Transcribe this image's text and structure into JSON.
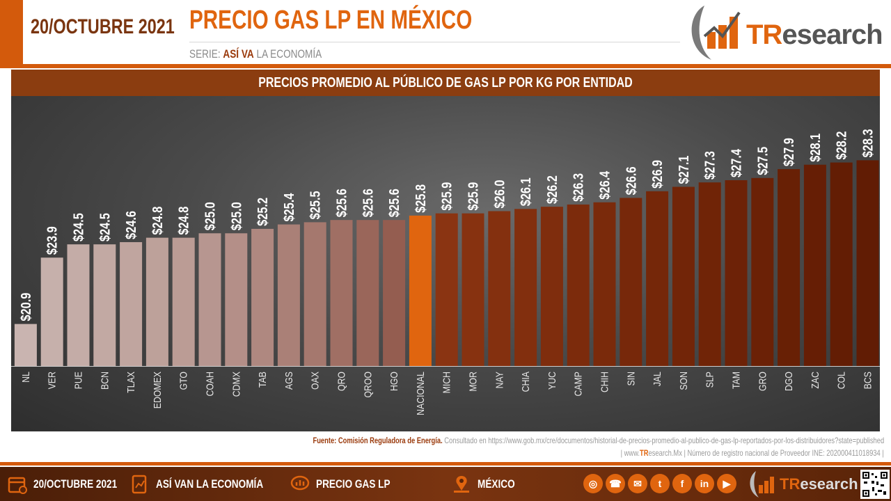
{
  "header": {
    "date_title": "20/OCTUBRE 2021",
    "main_title": "PRECIO GAS LP EN MÉXICO",
    "series_prefix": "SERIE:",
    "series_brand": "ASÍ VA",
    "series_suffix": "LA ECONOMÍA",
    "logo_tr": "TR",
    "logo_rest": "esearch"
  },
  "chart_data": {
    "type": "bar",
    "title": "PRECIOS PROMEDIO AL PÚBLICO DE GAS LP POR KG POR ENTIDAD",
    "categories": [
      "NL",
      "VER",
      "PUE",
      "BCN",
      "TLAX",
      "EDOMEX",
      "GTO",
      "COAH",
      "CDMX",
      "TAB",
      "AGS",
      "OAX",
      "QRO",
      "QROO",
      "HGO",
      "NACIONAL",
      "MICH",
      "MOR",
      "NAY",
      "CHIA",
      "YUC",
      "CAMP",
      "CHIH",
      "SIN",
      "JAL",
      "SON",
      "SLP",
      "TAM",
      "GRO",
      "DGO",
      "ZAC",
      "COL",
      "BCS"
    ],
    "values": [
      20.9,
      23.9,
      24.5,
      24.5,
      24.6,
      24.8,
      24.8,
      25.0,
      25.0,
      25.2,
      25.4,
      25.5,
      25.6,
      25.6,
      25.6,
      25.8,
      25.9,
      25.9,
      26.0,
      26.1,
      26.2,
      26.3,
      26.4,
      26.6,
      26.9,
      27.1,
      27.3,
      27.4,
      27.5,
      27.9,
      28.1,
      28.2,
      28.3
    ],
    "labels": [
      "$20.9",
      "$23.9",
      "$24.5",
      "$24.5",
      "$24.6",
      "$24.8",
      "$24.8",
      "$25.0",
      "$25.0",
      "$25.2",
      "$25.4",
      "$25.5",
      "$25.6",
      "$25.6",
      "$25.6",
      "$25.8",
      "$25.9",
      "$25.9",
      "$26.0",
      "$26.1",
      "$26.2",
      "$26.3",
      "$26.4",
      "$26.6",
      "$26.9",
      "$27.1",
      "$27.3",
      "$27.4",
      "$27.5",
      "$27.9",
      "$28.1",
      "$28.2",
      "$28.3"
    ],
    "colors": [
      "#c9b4b0",
      "#c6b0ab",
      "#c4aca7",
      "#c2a9a3",
      "#c0a59f",
      "#bda19a",
      "#bb9c95",
      "#b79690",
      "#b48f88",
      "#af8880",
      "#aa8077",
      "#a5786e",
      "#a06f64",
      "#9a665a",
      "#945d50",
      "#e0650f",
      "#8a3412",
      "#873210",
      "#84300f",
      "#822f0e",
      "#7f2d0d",
      "#7c2b0c",
      "#7a2a0b",
      "#77280a",
      "#752709",
      "#722508",
      "#702407",
      "#6d2207",
      "#6b2106",
      "#682005",
      "#661e05",
      "#631d04",
      "#611c04"
    ],
    "ylim": [
      0,
      30
    ],
    "highlight": "NACIONAL",
    "grid": false
  },
  "source": {
    "label": "Fuente:",
    "org": "Comisión Reguladora de Energía.",
    "text": "Consultado en https://www.gob.mx/cre/documentos/historial-de-precios-promedio-al-publico-de-gas-lp-reportados-por-los-distribuidores?state=published",
    "reg_prefix": "| www.",
    "reg_tr": "TR",
    "reg_suffix": "esearch.Mx  | Número de registro nacional de Proveedor INE: 202000411018934 |"
  },
  "footer": {
    "date": "20/OCTUBRE 2021",
    "series": "ASÍ VAN LA ECONOMÍA",
    "topic": "PRECIO GAS LP",
    "region": "MÉXICO",
    "logo_tr": "TR",
    "logo_rest": "esearch",
    "social_icons": [
      "globe-icon",
      "phone-icon",
      "email-icon",
      "twitter-icon",
      "facebook-icon",
      "linkedin-icon",
      "youtube-icon"
    ]
  }
}
